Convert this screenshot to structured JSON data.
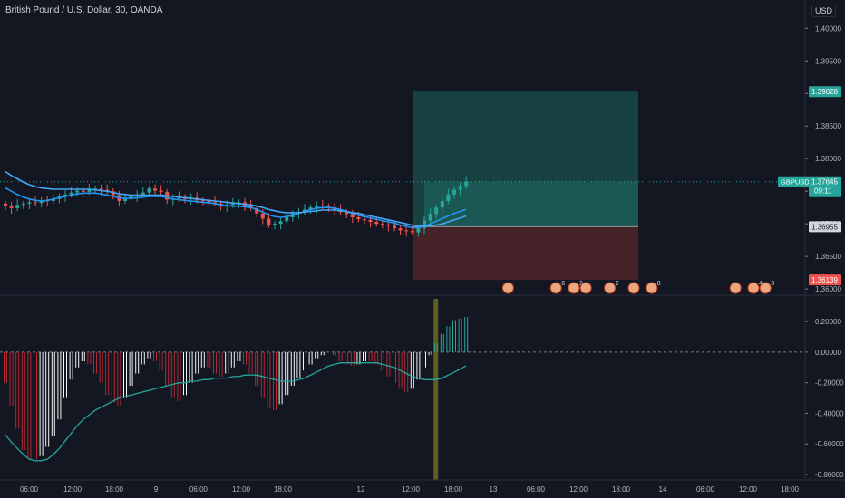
{
  "header": {
    "title": "British Pound / U.S. Dollar, 30, OANDA",
    "currency": "USD"
  },
  "price_labels": {
    "target": "1.39028",
    "symbol": "GBPUSD",
    "current": "1.37645",
    "countdown": "09:11",
    "entry": "1.36955",
    "stop": "1.36139"
  },
  "event_markers": [
    {
      "x_index": 84,
      "badge": ""
    },
    {
      "x_index": 92,
      "badge": "6"
    },
    {
      "x_index": 95,
      "badge": "2"
    },
    {
      "x_index": 97,
      "badge": ""
    },
    {
      "x_index": 101,
      "badge": "2"
    },
    {
      "x_index": 105,
      "badge": ""
    },
    {
      "x_index": 108,
      "badge": "8"
    },
    {
      "x_index": 122,
      "badge": ""
    },
    {
      "x_index": 125,
      "badge": "4"
    },
    {
      "x_index": 127,
      "badge": "3"
    }
  ],
  "colors": {
    "up": "#26a69a",
    "down": "#ef5350",
    "ma_fast": "#2196f3",
    "ma_slow": "#42a5f5",
    "profit_zone": "#1a4a46",
    "loss_zone": "#4a2328",
    "hist_up": "#f5f5f5",
    "hist_down": "#b22833",
    "hist_green": "#26a69a",
    "signal": "#26a69a"
  },
  "chart_data": [
    {
      "type": "candlestick",
      "title": "British Pound / U.S. Dollar, 30, OANDA",
      "x_tick_labels": [
        "06:00",
        "12:00",
        "18:00",
        "9",
        "06:00",
        "12:00",
        "18:00",
        "12",
        "12:00",
        "18:00",
        "13",
        "06:00",
        "12:00",
        "18:00",
        "14",
        "06:00",
        "12:00",
        "18:00"
      ],
      "y_tick_labels": [
        "1.40000",
        "1.39500",
        "1.39000",
        "1.38500",
        "1.38000",
        "1.37500",
        "1.37000",
        "1.36500",
        "1.36000"
      ],
      "ylim": [
        1.3596,
        1.4024
      ],
      "close": [
        1.3727,
        1.3724,
        1.3729,
        1.3731,
        1.3733,
        1.3732,
        1.3736,
        1.3735,
        1.3738,
        1.3742,
        1.3745,
        1.3748,
        1.3751,
        1.3749,
        1.3753,
        1.3754,
        1.3752,
        1.375,
        1.3744,
        1.3735,
        1.3738,
        1.3742,
        1.3745,
        1.3748,
        1.3754,
        1.3751,
        1.3749,
        1.3737,
        1.3739,
        1.3741,
        1.3738,
        1.374,
        1.3736,
        1.3735,
        1.3733,
        1.3731,
        1.3727,
        1.3729,
        1.3731,
        1.3733,
        1.3728,
        1.3724,
        1.3716,
        1.3708,
        1.3698,
        1.37,
        1.3704,
        1.371,
        1.3716,
        1.3718,
        1.3722,
        1.3725,
        1.3728,
        1.3727,
        1.3725,
        1.3722,
        1.3718,
        1.3715,
        1.371,
        1.3707,
        1.3706,
        1.3703,
        1.37,
        1.3699,
        1.3697,
        1.3693,
        1.369,
        1.3689,
        1.3687,
        1.3693,
        1.3705,
        1.3715,
        1.3725,
        1.3735,
        1.3745,
        1.3752,
        1.3758,
        1.37645
      ],
      "series": [
        {
          "name": "MA fast",
          "values": [
            1.3755,
            1.375,
            1.3745,
            1.3741,
            1.3738,
            1.3736,
            1.3735,
            1.3736,
            1.3738,
            1.374,
            1.3742,
            1.3744,
            1.3746,
            1.3747,
            1.3747,
            1.3747,
            1.3746,
            1.3744,
            1.3742,
            1.374,
            1.3739,
            1.3739,
            1.374,
            1.3741,
            1.3742,
            1.3742,
            1.3742,
            1.374,
            1.3738,
            1.3737,
            1.3736,
            1.3735,
            1.3734,
            1.3733,
            1.3732,
            1.3731,
            1.3729,
            1.3728,
            1.3727,
            1.3727,
            1.3726,
            1.3725,
            1.3722,
            1.3718,
            1.3714,
            1.3711,
            1.371,
            1.3711,
            1.3713,
            1.3716,
            1.3719,
            1.3722,
            1.3724,
            1.3725,
            1.3725,
            1.3724,
            1.3722,
            1.3719,
            1.3716,
            1.3713,
            1.3711,
            1.3709,
            1.3707,
            1.3705,
            1.3703,
            1.3701,
            1.3698,
            1.3696,
            1.3694,
            1.3694,
            1.3696,
            1.37,
            1.3704,
            1.3708,
            1.3712,
            1.3716,
            1.3719,
            1.3722
          ]
        },
        {
          "name": "MA slow",
          "values": [
            1.378,
            1.3774,
            1.3769,
            1.3764,
            1.376,
            1.3757,
            1.3755,
            1.3754,
            1.3753,
            1.3753,
            1.3753,
            1.3753,
            1.3753,
            1.3753,
            1.3753,
            1.3752,
            1.3751,
            1.375,
            1.3748,
            1.3746,
            1.3745,
            1.3744,
            1.3744,
            1.3744,
            1.3744,
            1.3744,
            1.3744,
            1.3743,
            1.3742,
            1.3741,
            1.374,
            1.3739,
            1.3738,
            1.3737,
            1.3736,
            1.3735,
            1.3734,
            1.3733,
            1.3732,
            1.3731,
            1.373,
            1.3729,
            1.3727,
            1.3725,
            1.3722,
            1.372,
            1.3718,
            1.3717,
            1.3717,
            1.3717,
            1.3718,
            1.3719,
            1.372,
            1.3721,
            1.3721,
            1.3721,
            1.372,
            1.3719,
            1.3717,
            1.3716,
            1.3714,
            1.3712,
            1.371,
            1.3708,
            1.3706,
            1.3704,
            1.3702,
            1.37,
            1.3698,
            1.3697,
            1.3696,
            1.3697,
            1.3698,
            1.37,
            1.3703,
            1.3706,
            1.3709,
            1.3712
          ]
        }
      ],
      "position": {
        "target": 1.39028,
        "entry": 1.36955,
        "stop": 1.36139,
        "current": 1.37645
      }
    },
    {
      "type": "bar",
      "y_tick_labels": [
        "0.20000",
        "0.00000",
        "-0.20000",
        "-0.40000",
        "-0.60000",
        "-0.80000"
      ],
      "ylim": [
        -0.8,
        0.26
      ],
      "values": [
        -0.2,
        -0.35,
        -0.5,
        -0.64,
        -0.7,
        -0.7,
        -0.68,
        -0.62,
        -0.55,
        -0.44,
        -0.3,
        -0.18,
        -0.1,
        -0.06,
        -0.08,
        -0.14,
        -0.2,
        -0.28,
        -0.33,
        -0.35,
        -0.3,
        -0.22,
        -0.14,
        -0.08,
        -0.04,
        -0.06,
        -0.12,
        -0.22,
        -0.3,
        -0.32,
        -0.28,
        -0.2,
        -0.14,
        -0.1,
        -0.1,
        -0.14,
        -0.16,
        -0.14,
        -0.1,
        -0.06,
        -0.08,
        -0.14,
        -0.22,
        -0.3,
        -0.37,
        -0.38,
        -0.34,
        -0.28,
        -0.22,
        -0.17,
        -0.12,
        -0.08,
        -0.04,
        -0.02,
        0.0,
        -0.02,
        -0.06,
        -0.08,
        -0.09,
        -0.08,
        -0.06,
        -0.06,
        -0.08,
        -0.12,
        -0.16,
        -0.2,
        -0.24,
        -0.26,
        -0.24,
        -0.18,
        -0.1,
        -0.02,
        0.06,
        0.12,
        0.17,
        0.21,
        0.22,
        0.23
      ],
      "series": [
        {
          "name": "signal",
          "values": [
            -0.54,
            -0.59,
            -0.63,
            -0.67,
            -0.7,
            -0.71,
            -0.71,
            -0.7,
            -0.67,
            -0.63,
            -0.58,
            -0.53,
            -0.48,
            -0.44,
            -0.41,
            -0.38,
            -0.36,
            -0.34,
            -0.32,
            -0.3,
            -0.29,
            -0.28,
            -0.27,
            -0.26,
            -0.25,
            -0.24,
            -0.23,
            -0.22,
            -0.21,
            -0.2,
            -0.2,
            -0.19,
            -0.19,
            -0.18,
            -0.18,
            -0.17,
            -0.17,
            -0.17,
            -0.16,
            -0.16,
            -0.15,
            -0.15,
            -0.15,
            -0.16,
            -0.17,
            -0.18,
            -0.19,
            -0.19,
            -0.19,
            -0.18,
            -0.17,
            -0.15,
            -0.13,
            -0.11,
            -0.09,
            -0.08,
            -0.07,
            -0.07,
            -0.07,
            -0.07,
            -0.07,
            -0.07,
            -0.07,
            -0.08,
            -0.09,
            -0.1,
            -0.12,
            -0.14,
            -0.16,
            -0.17,
            -0.18,
            -0.18,
            -0.18,
            -0.17,
            -0.15,
            -0.13,
            -0.11,
            -0.09
          ]
        }
      ]
    }
  ]
}
